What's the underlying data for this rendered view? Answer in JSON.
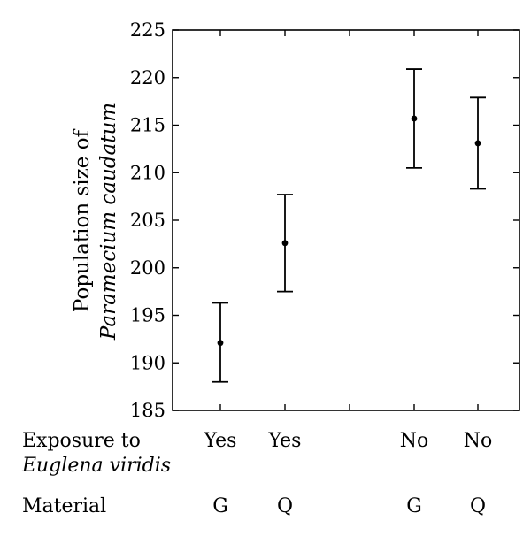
{
  "chart_data": {
    "type": "scatter",
    "ylabel_line1": "Population size of",
    "ylabel_line2": "Paramecium caudatum",
    "ylim": [
      185,
      225
    ],
    "yticks": [
      185,
      190,
      195,
      200,
      205,
      210,
      215,
      220,
      225
    ],
    "grid": false,
    "points": [
      {
        "exposure": "Yes",
        "material": "G",
        "mean": 192.1,
        "lower": 188.0,
        "upper": 196.3
      },
      {
        "exposure": "Yes",
        "material": "Q",
        "mean": 202.6,
        "lower": 197.5,
        "upper": 207.7
      },
      {
        "exposure": "No",
        "material": "G",
        "mean": 215.7,
        "lower": 210.5,
        "upper": 220.9
      },
      {
        "exposure": "No",
        "material": "Q",
        "mean": 213.1,
        "lower": 208.3,
        "upper": 217.9
      }
    ],
    "row_labels": {
      "exposure_line1": "Exposure to",
      "exposure_line2": "Euglena viridis",
      "material": "Material"
    }
  }
}
